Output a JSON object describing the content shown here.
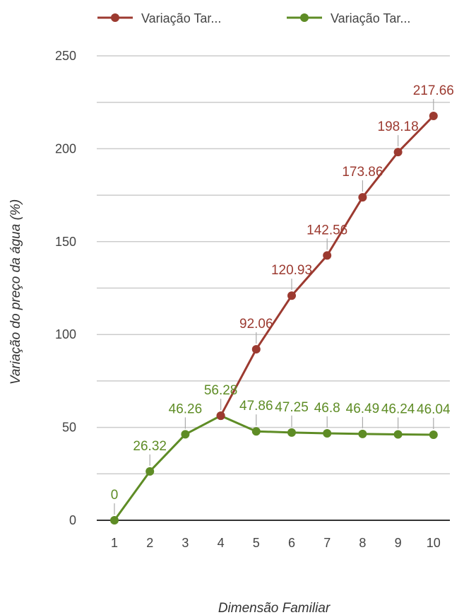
{
  "chart_data": {
    "type": "line",
    "title": "",
    "xlabel": "Dimensão Familiar",
    "ylabel": "Variação do preço da água (%)",
    "x": [
      1,
      2,
      3,
      4,
      5,
      6,
      7,
      8,
      9,
      10
    ],
    "ylim": [
      0,
      250
    ],
    "yticks": [
      0,
      50,
      100,
      150,
      200,
      250
    ],
    "grid": true,
    "legend": "top",
    "series": [
      {
        "name": "Variação Tar...",
        "color": "#9c3a30",
        "values": [
          null,
          null,
          null,
          56.28,
          92.06,
          120.93,
          142.56,
          173.86,
          198.18,
          217.66
        ],
        "labels": [
          "",
          "",
          "",
          "",
          "92.06",
          "120.93",
          "142.56",
          "173.86",
          "198.18",
          "217.66"
        ]
      },
      {
        "name": "Variação Tar...",
        "color": "#5e8c25",
        "values": [
          0,
          26.32,
          46.26,
          56.28,
          47.86,
          47.25,
          46.8,
          46.49,
          46.24,
          46.04
        ],
        "labels": [
          "0",
          "26.32",
          "46.26",
          "56.28",
          "47.86",
          "47.25",
          "46.8",
          "46.49",
          "46.24",
          "46.04"
        ]
      }
    ]
  }
}
